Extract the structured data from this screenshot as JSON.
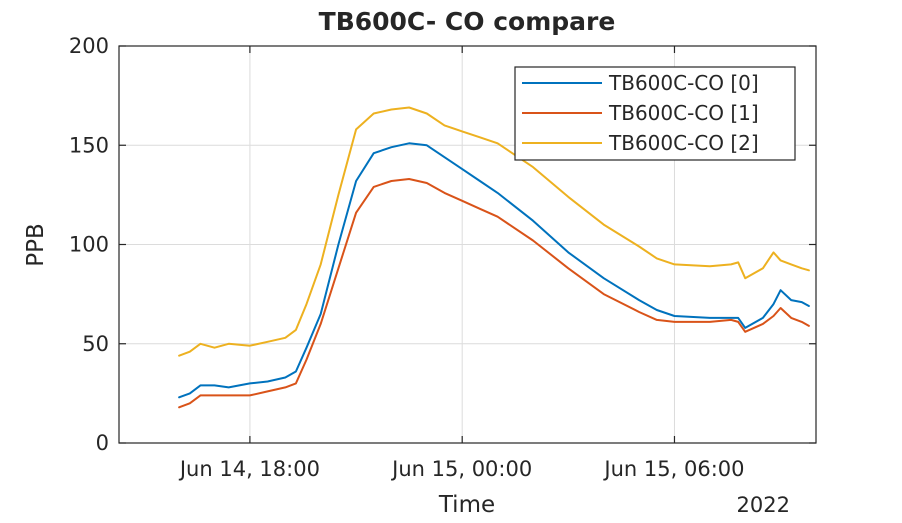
{
  "chart_data": {
    "type": "line",
    "title": "TB600C- CO compare",
    "xlabel": "Time",
    "ylabel": "PPB",
    "x_tick_labels": [
      "Jun 14, 18:00",
      "Jun 15, 00:00",
      "Jun 15, 06:00"
    ],
    "x_secondary_label": "2022",
    "x_ticks_hours": [
      18,
      24,
      30
    ],
    "xlim_hours": [
      14.3,
      34.0
    ],
    "ylim": [
      0,
      200
    ],
    "y_ticks": [
      0,
      50,
      100,
      150,
      200
    ],
    "y_tick_labels": [
      "0",
      "50",
      "100",
      "150",
      "200"
    ],
    "grid": true,
    "legend_position": "top-right",
    "x_unit_note": "x values are hours after Jun 14, 00:00 (2022)",
    "series": [
      {
        "name": "TB600C-CO [0]",
        "color": "#0072BD",
        "x": [
          16.0,
          16.3,
          16.6,
          17.0,
          17.4,
          18.0,
          18.5,
          19.0,
          19.3,
          19.6,
          20.0,
          20.5,
          21.0,
          21.5,
          22.0,
          22.5,
          23.0,
          23.5,
          24.0,
          24.5,
          25.0,
          26.0,
          27.0,
          28.0,
          29.0,
          29.5,
          30.0,
          31.0,
          31.6,
          31.8,
          32.0,
          32.5,
          32.8,
          33.0,
          33.3,
          33.6,
          33.8
        ],
        "y": [
          23,
          25,
          29,
          29,
          28,
          30,
          31,
          33,
          36,
          48,
          65,
          100,
          132,
          146,
          149,
          151,
          150,
          144,
          138,
          132,
          126,
          112,
          96,
          83,
          72,
          67,
          64,
          63,
          63,
          63,
          58,
          63,
          70,
          77,
          72,
          71,
          69
        ]
      },
      {
        "name": "TB600C-CO [1]",
        "color": "#D95319",
        "x": [
          16.0,
          16.3,
          16.6,
          17.0,
          17.4,
          18.0,
          18.5,
          19.0,
          19.3,
          19.6,
          20.0,
          20.5,
          21.0,
          21.5,
          22.0,
          22.5,
          23.0,
          23.5,
          24.0,
          24.5,
          25.0,
          26.0,
          27.0,
          28.0,
          29.0,
          29.5,
          30.0,
          31.0,
          31.6,
          31.8,
          32.0,
          32.5,
          32.8,
          33.0,
          33.3,
          33.6,
          33.8
        ],
        "y": [
          18,
          20,
          24,
          24,
          24,
          24,
          26,
          28,
          30,
          42,
          60,
          88,
          116,
          129,
          132,
          133,
          131,
          126,
          122,
          118,
          114,
          102,
          88,
          75,
          66,
          62,
          61,
          61,
          62,
          61,
          56,
          60,
          64,
          68,
          63,
          61,
          59
        ]
      },
      {
        "name": "TB600C-CO [2]",
        "color": "#EDB120",
        "x": [
          16.0,
          16.3,
          16.6,
          17.0,
          17.4,
          18.0,
          18.5,
          19.0,
          19.3,
          19.6,
          20.0,
          20.5,
          21.0,
          21.5,
          22.0,
          22.5,
          23.0,
          23.5,
          24.0,
          24.5,
          25.0,
          26.0,
          27.0,
          28.0,
          29.0,
          29.5,
          30.0,
          31.0,
          31.6,
          31.8,
          32.0,
          32.5,
          32.8,
          33.0,
          33.3,
          33.6,
          33.8
        ],
        "y": [
          44,
          46,
          50,
          48,
          50,
          49,
          51,
          53,
          57,
          70,
          90,
          125,
          158,
          166,
          168,
          169,
          166,
          160,
          157,
          154,
          151,
          139,
          124,
          110,
          99,
          93,
          90,
          89,
          90,
          91,
          83,
          88,
          96,
          92,
          90,
          88,
          87
        ]
      }
    ]
  }
}
